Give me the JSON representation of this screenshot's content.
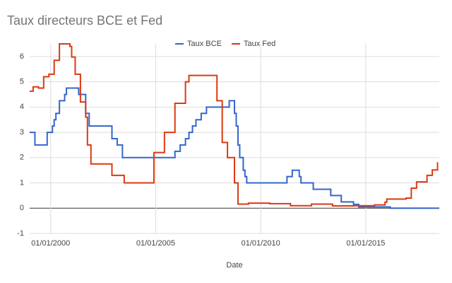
{
  "chart_data": {
    "type": "line",
    "title": "Taux directeurs BCE et Fed",
    "x_label": "Date",
    "xlim": [
      "01/01/1999",
      "01/07/2018"
    ],
    "xticks": [
      "01/01/2000",
      "01/01/2005",
      "01/01/2010",
      "01/01/2015"
    ],
    "ylim": [
      -1,
      6.5
    ],
    "yticks": [
      -1,
      0,
      1,
      2,
      3,
      4,
      5,
      6
    ],
    "grid": true,
    "legend": "top",
    "step": true,
    "series": [
      {
        "name": "Taux BCE",
        "color": "#3366cc",
        "x": [
          "01/01/1999",
          "01/04/1999",
          "01/11/1999",
          "01/02/2000",
          "01/03/2000",
          "01/04/2000",
          "01/06/2000",
          "01/09/2000",
          "01/10/2000",
          "01/05/2001",
          "01/09/2001",
          "01/11/2001",
          "01/12/2002",
          "01/03/2003",
          "01/06/2003",
          "01/12/2005",
          "01/03/2006",
          "01/06/2006",
          "01/08/2006",
          "01/10/2006",
          "01/12/2006",
          "01/03/2007",
          "01/06/2007",
          "01/07/2008",
          "01/10/2008",
          "01/11/2008",
          "01/12/2008",
          "01/01/2009",
          "01/03/2009",
          "01/04/2009",
          "01/05/2009",
          "01/04/2011",
          "01/07/2011",
          "01/11/2011",
          "01/12/2011",
          "01/07/2012",
          "01/05/2013",
          "01/11/2013",
          "01/06/2014",
          "01/09/2014",
          "01/03/2016",
          "01/07/2018"
        ],
        "values": [
          3,
          2.5,
          3,
          3.25,
          3.5,
          3.75,
          4.25,
          4.5,
          4.75,
          4.5,
          3.75,
          3.25,
          2.75,
          2.5,
          2,
          2.25,
          2.5,
          2.75,
          3,
          3.25,
          3.5,
          3.75,
          4,
          4.25,
          3.75,
          3.25,
          2.5,
          2,
          1.5,
          1.25,
          1,
          1.25,
          1.5,
          1.25,
          1,
          0.75,
          0.5,
          0.25,
          0.15,
          0.05,
          0,
          0
        ]
      },
      {
        "name": "Taux Fed",
        "color": "#dc3912",
        "x": [
          "01/01/1999",
          "01/03/1999",
          "01/06/1999",
          "01/09/1999",
          "01/12/1999",
          "01/03/2000",
          "01/06/2000",
          "01/12/2000",
          "01/01/2001",
          "01/03/2001",
          "01/06/2001",
          "01/09/2001",
          "01/10/2001",
          "01/12/2001",
          "01/10/2002",
          "01/12/2002",
          "01/07/2003",
          "01/06/2004",
          "01/12/2004",
          "01/06/2005",
          "01/12/2005",
          "01/06/2006",
          "01/08/2006",
          "01/08/2007",
          "01/12/2007",
          "01/03/2008",
          "01/06/2008",
          "01/10/2008",
          "01/12/2008",
          "01/06/2009",
          "01/06/2010",
          "01/06/2011",
          "01/06/2012",
          "01/06/2013",
          "01/06/2014",
          "01/06/2015",
          "01/12/2015",
          "01/01/2016",
          "01/12/2016",
          "01/03/2017",
          "01/06/2017",
          "01/12/2017",
          "01/03/2018",
          "01/06/2018"
        ],
        "values": [
          4.63,
          4.8,
          4.75,
          5.2,
          5.3,
          5.85,
          6.5,
          6.4,
          5.98,
          5.3,
          4.2,
          3.6,
          2.5,
          1.75,
          1.75,
          1.3,
          1.0,
          1.0,
          2.2,
          3.0,
          4.15,
          5.0,
          5.25,
          5.25,
          4.25,
          2.6,
          2.0,
          1.0,
          0.16,
          0.2,
          0.18,
          0.1,
          0.16,
          0.09,
          0.1,
          0.13,
          0.24,
          0.36,
          0.4,
          0.79,
          1.04,
          1.3,
          1.51,
          1.82
        ]
      }
    ]
  }
}
